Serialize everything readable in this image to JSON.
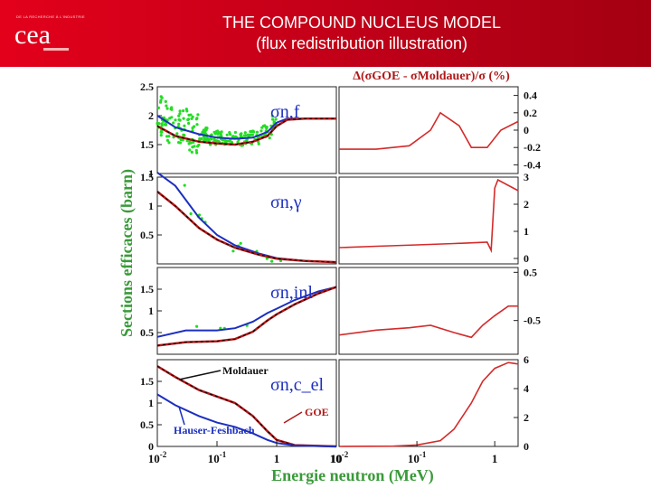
{
  "header": {
    "logo_subtitle": "DE LA RECHERCHE À L'INDUSTRIE",
    "logo_text": "cea",
    "title_line1": "THE COMPOUND NUCLEUS MODEL",
    "title_line2": "(flux redistribution illustration)"
  },
  "colors": {
    "header_red": "#d0021b",
    "moldauer": "#1c2fbf",
    "goe": "#b01818",
    "diff": "#d42a2a",
    "experiment": "#22dd22",
    "axis_label": "#3a9a3a"
  },
  "chart_data": {
    "type": "line",
    "ylabel": "Sections efficaces (barn)",
    "xlabel": "Energie neutron (MeV)",
    "right_column_title": "Δ(σGOE - σMoldauer)/σ (%)",
    "x_ticks_left": [
      "10-2",
      "10-1",
      "1",
      "10"
    ],
    "x_ticks_right": [
      "10-2",
      "10-1",
      "1"
    ],
    "x_scale": "log",
    "left_panels": [
      {
        "label": "σn,f",
        "ylim": [
          1,
          2.5
        ],
        "yticks": [
          "2.5",
          "2",
          "1.5",
          "1"
        ],
        "moldauer": [
          [
            0.01,
            2.0
          ],
          [
            0.02,
            1.8
          ],
          [
            0.05,
            1.68
          ],
          [
            0.1,
            1.62
          ],
          [
            0.2,
            1.6
          ],
          [
            0.4,
            1.62
          ],
          [
            0.7,
            1.72
          ],
          [
            1.0,
            1.88
          ],
          [
            1.5,
            1.95
          ],
          [
            3,
            1.95
          ],
          [
            10,
            1.95
          ]
        ],
        "goe": [
          [
            0.01,
            1.82
          ],
          [
            0.02,
            1.65
          ],
          [
            0.05,
            1.55
          ],
          [
            0.1,
            1.52
          ],
          [
            0.2,
            1.5
          ],
          [
            0.4,
            1.55
          ],
          [
            0.7,
            1.65
          ],
          [
            1.0,
            1.82
          ],
          [
            1.5,
            1.93
          ],
          [
            3,
            1.95
          ],
          [
            10,
            1.95
          ]
        ]
      },
      {
        "label": "σn,γ",
        "ylim": [
          0,
          1.5
        ],
        "yticks": [
          "1.5",
          "1",
          "0.5"
        ],
        "moldauer": [
          [
            0.01,
            1.58
          ],
          [
            0.02,
            1.35
          ],
          [
            0.05,
            0.8
          ],
          [
            0.1,
            0.5
          ],
          [
            0.2,
            0.32
          ],
          [
            0.5,
            0.18
          ],
          [
            1,
            0.1
          ],
          [
            3,
            0.05
          ],
          [
            10,
            0.03
          ]
        ],
        "goe": [
          [
            0.01,
            1.25
          ],
          [
            0.02,
            1.0
          ],
          [
            0.05,
            0.62
          ],
          [
            0.1,
            0.42
          ],
          [
            0.2,
            0.28
          ],
          [
            0.5,
            0.16
          ],
          [
            1,
            0.09
          ],
          [
            3,
            0.05
          ],
          [
            10,
            0.03
          ]
        ]
      },
      {
        "label": "σn,inl",
        "ylim": [
          0,
          2
        ],
        "yticks": [
          "1.5",
          "1",
          "0.5"
        ],
        "moldauer": [
          [
            0.01,
            0.4
          ],
          [
            0.03,
            0.55
          ],
          [
            0.1,
            0.55
          ],
          [
            0.2,
            0.6
          ],
          [
            0.4,
            0.75
          ],
          [
            0.7,
            0.95
          ],
          [
            1,
            1.05
          ],
          [
            2,
            1.25
          ],
          [
            5,
            1.45
          ],
          [
            10,
            1.55
          ]
        ],
        "goe": [
          [
            0.01,
            0.2
          ],
          [
            0.03,
            0.28
          ],
          [
            0.1,
            0.3
          ],
          [
            0.2,
            0.35
          ],
          [
            0.4,
            0.52
          ],
          [
            0.7,
            0.78
          ],
          [
            1,
            0.92
          ],
          [
            2,
            1.15
          ],
          [
            5,
            1.4
          ],
          [
            10,
            1.55
          ]
        ]
      },
      {
        "label": "σn,c_el",
        "ylim": [
          0,
          2
        ],
        "yticks": [
          "1.5",
          "1",
          "0.5",
          "0"
        ],
        "annotations": [
          "Moldauer",
          "GOE",
          "Hauser-Feshbach"
        ],
        "moldauer": [
          [
            0.01,
            1.85
          ],
          [
            0.02,
            1.6
          ],
          [
            0.05,
            1.3
          ],
          [
            0.1,
            1.15
          ],
          [
            0.2,
            1.0
          ],
          [
            0.4,
            0.7
          ],
          [
            0.7,
            0.35
          ],
          [
            1,
            0.15
          ],
          [
            2,
            0.03
          ],
          [
            10,
            0.0
          ]
        ],
        "hauser_feshbach": [
          [
            0.01,
            1.2
          ],
          [
            0.02,
            0.95
          ],
          [
            0.05,
            0.7
          ],
          [
            0.1,
            0.55
          ],
          [
            0.2,
            0.45
          ],
          [
            0.4,
            0.3
          ],
          [
            0.7,
            0.15
          ],
          [
            1,
            0.08
          ],
          [
            2,
            0.02
          ],
          [
            10,
            0.0
          ]
        ]
      }
    ],
    "right_panels": [
      {
        "yticks": [
          "0.4",
          "0.2",
          "0",
          "-0.2",
          "-0.4"
        ],
        "ylim": [
          -0.5,
          0.5
        ],
        "values": [
          [
            0.01,
            -0.22
          ],
          [
            0.03,
            -0.22
          ],
          [
            0.08,
            -0.18
          ],
          [
            0.15,
            0.0
          ],
          [
            0.2,
            0.2
          ],
          [
            0.35,
            0.05
          ],
          [
            0.5,
            -0.2
          ],
          [
            0.8,
            -0.2
          ],
          [
            1.2,
            0.0
          ],
          [
            2,
            0.1
          ]
        ]
      },
      {
        "yticks": [
          "3",
          "2",
          "1",
          "0"
        ],
        "ylim": [
          -0.2,
          3
        ],
        "values": [
          [
            0.01,
            0.4
          ],
          [
            0.03,
            0.45
          ],
          [
            0.1,
            0.5
          ],
          [
            0.3,
            0.55
          ],
          [
            0.8,
            0.6
          ],
          [
            0.9,
            0.3
          ],
          [
            1.0,
            2.6
          ],
          [
            1.1,
            2.9
          ],
          [
            2,
            2.5
          ]
        ]
      },
      {
        "yticks": [
          "0.5",
          "-0.5"
        ],
        "ylim": [
          -1.2,
          0.6
        ],
        "values": [
          [
            0.01,
            -0.8
          ],
          [
            0.03,
            -0.7
          ],
          [
            0.08,
            -0.65
          ],
          [
            0.15,
            -0.6
          ],
          [
            0.3,
            -0.75
          ],
          [
            0.5,
            -0.85
          ],
          [
            0.7,
            -0.6
          ],
          [
            1.0,
            -0.4
          ],
          [
            1.5,
            -0.2
          ],
          [
            2,
            -0.2
          ]
        ]
      },
      {
        "yticks": [
          "6",
          "4",
          "2",
          "0"
        ],
        "ylim": [
          0,
          6
        ],
        "values": [
          [
            0.01,
            0.0
          ],
          [
            0.05,
            0.02
          ],
          [
            0.1,
            0.1
          ],
          [
            0.2,
            0.4
          ],
          [
            0.3,
            1.2
          ],
          [
            0.5,
            3.0
          ],
          [
            0.7,
            4.5
          ],
          [
            1.0,
            5.4
          ],
          [
            1.5,
            5.8
          ],
          [
            2,
            5.7
          ]
        ]
      }
    ]
  }
}
